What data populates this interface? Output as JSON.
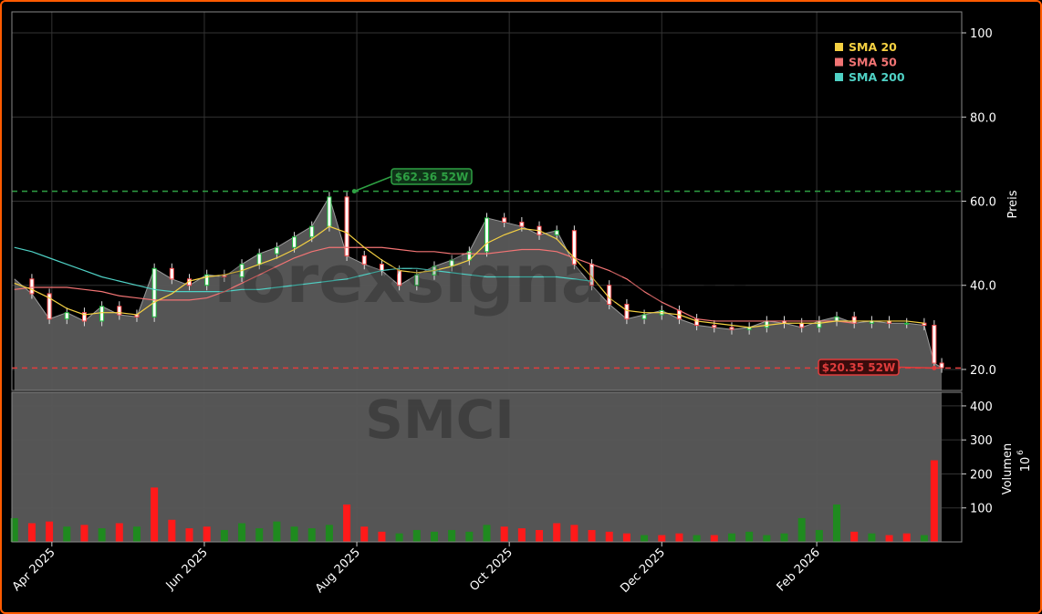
{
  "chart_data": [
    {
      "type": "candlestick",
      "ticker_watermark": "SMCI",
      "site_watermark": "forexsignale.tr",
      "ylabel": "Preis",
      "ylim": [
        15,
        105
      ],
      "y_ticks": [
        20.0,
        40.0,
        60.0,
        80.0,
        100
      ],
      "y_tick_labels": [
        "20.0",
        "40.0",
        "60.0",
        "80.0",
        "100"
      ],
      "x_tick_labels": [
        {
          "date": "2025-04-01",
          "label": "Apr 2025"
        },
        {
          "date": "2025-06-01",
          "label": "Jun 2025"
        },
        {
          "date": "2025-08-01",
          "label": "Aug 2025"
        },
        {
          "date": "2025-10-01",
          "label": "Oct 2025"
        },
        {
          "date": "2025-12-01",
          "label": "Dec 2025"
        },
        {
          "date": "2026-02-01",
          "label": "Feb 2026"
        }
      ],
      "x_range": [
        "2025-03-16",
        "2026-03-31"
      ],
      "grid": true,
      "legend_position": "top-right",
      "legend": [
        {
          "name": "SMA 20",
          "color": "#f5d142"
        },
        {
          "name": "SMA 50",
          "color": "#f27474"
        },
        {
          "name": "SMA 200",
          "color": "#4fd1c5"
        }
      ],
      "price_series": {
        "dates": [
          "2025-03-17",
          "2025-03-24",
          "2025-03-31",
          "2025-04-07",
          "2025-04-14",
          "2025-04-21",
          "2025-04-28",
          "2025-05-05",
          "2025-05-12",
          "2025-05-19",
          "2025-05-26",
          "2025-06-02",
          "2025-06-09",
          "2025-06-16",
          "2025-06-23",
          "2025-06-30",
          "2025-07-07",
          "2025-07-14",
          "2025-07-21",
          "2025-07-28",
          "2025-08-04",
          "2025-08-11",
          "2025-08-18",
          "2025-08-25",
          "2025-09-01",
          "2025-09-08",
          "2025-09-15",
          "2025-09-22",
          "2025-09-29",
          "2025-10-06",
          "2025-10-13",
          "2025-10-20",
          "2025-10-27",
          "2025-11-03",
          "2025-11-10",
          "2025-11-17",
          "2025-11-24",
          "2025-12-01",
          "2025-12-08",
          "2025-12-15",
          "2025-12-22",
          "2025-12-29",
          "2026-01-05",
          "2026-01-12",
          "2026-01-19",
          "2026-01-26",
          "2026-02-02",
          "2026-02-09",
          "2026-02-16",
          "2026-02-23",
          "2026-03-02",
          "2026-03-09",
          "2026-03-16",
          "2026-03-20",
          "2026-03-23"
        ],
        "close": [
          41.5,
          38.0,
          32.0,
          33.5,
          31.5,
          35.0,
          33.0,
          32.5,
          44.0,
          41.5,
          40.0,
          42.5,
          42.0,
          45.0,
          47.5,
          49.0,
          51.5,
          54.0,
          61.0,
          47.0,
          45.0,
          43.5,
          40.0,
          42.5,
          44.5,
          46.0,
          48.0,
          56.0,
          55.0,
          54.0,
          52.0,
          53.0,
          45.0,
          40.0,
          35.5,
          32.0,
          33.0,
          34.0,
          32.0,
          30.5,
          30.0,
          29.5,
          30.0,
          31.5,
          31.0,
          30.0,
          31.5,
          32.5,
          31.0,
          31.5,
          31.0,
          31.0,
          30.5,
          21.5,
          20.4
        ]
      },
      "sma20": [
        40.5,
        39.0,
        37.0,
        34.5,
        33.0,
        33.5,
        33.5,
        33.0,
        36.0,
        38.0,
        41.0,
        42.0,
        42.5,
        43.5,
        45.0,
        46.5,
        48.5,
        51.0,
        54.0,
        52.5,
        49.0,
        46.0,
        43.5,
        43.0,
        43.5,
        44.5,
        46.0,
        50.0,
        52.0,
        53.5,
        53.0,
        51.0,
        46.5,
        42.0,
        37.0,
        34.0,
        33.5,
        33.5,
        33.0,
        31.5,
        31.0,
        30.5,
        30.0,
        30.5,
        31.0,
        31.0,
        31.0,
        31.5,
        31.5,
        31.5,
        31.5,
        31.5,
        31.0
      ],
      "sma50": [
        39.0,
        39.5,
        39.5,
        39.5,
        39.0,
        38.5,
        37.5,
        37.0,
        36.5,
        36.5,
        36.5,
        37.0,
        38.5,
        40.5,
        42.5,
        44.5,
        46.5,
        48.0,
        49.0,
        49.0,
        49.0,
        49.0,
        48.5,
        48.0,
        48.0,
        47.5,
        47.5,
        47.5,
        48.0,
        48.5,
        48.5,
        48.0,
        46.5,
        45.0,
        43.5,
        41.5,
        38.5,
        36.0,
        34.0,
        32.0,
        31.5,
        31.5,
        31.5,
        31.5,
        31.5,
        31.5,
        31.5,
        31.5,
        31.0
      ],
      "sma200": [
        49.0,
        48.0,
        46.5,
        45.0,
        43.5,
        42.0,
        41.0,
        40.0,
        39.0,
        38.5,
        38.5,
        38.5,
        38.5,
        39.0,
        39.0,
        39.5,
        40.0,
        40.5,
        41.0,
        41.5,
        42.5,
        43.5,
        44.0,
        44.0,
        43.5,
        43.0,
        42.5,
        42.0,
        42.0,
        42.0,
        42.0,
        42.0,
        41.5,
        41.0
      ],
      "annotations": [
        {
          "label": "$62.36 52W",
          "value": 62.36,
          "date": "2025-07-31",
          "kind": "52-week high",
          "color": "#2ea043"
        },
        {
          "label": "$20.35 52W",
          "value": 20.35,
          "date": "2026-03-20",
          "kind": "52-week low",
          "color": "#e03c3c"
        }
      ]
    },
    {
      "type": "bar",
      "ylabel": "Volumen",
      "unit": "10^6",
      "unit_label": "10",
      "unit_exp": "6",
      "ylim": [
        0,
        440
      ],
      "y_ticks": [
        100,
        200,
        300,
        400
      ],
      "y_tick_labels": [
        "100",
        "200",
        "300",
        "400"
      ],
      "up_color": "#1f8a1f",
      "down_color": "#ff1a1a",
      "volume_series": {
        "dates": [
          "2025-03-17",
          "2025-03-24",
          "2025-03-31",
          "2025-04-07",
          "2025-04-14",
          "2025-04-21",
          "2025-04-28",
          "2025-05-05",
          "2025-05-12",
          "2025-05-19",
          "2025-05-26",
          "2025-06-02",
          "2025-06-09",
          "2025-06-16",
          "2025-06-23",
          "2025-06-30",
          "2025-07-07",
          "2025-07-14",
          "2025-07-21",
          "2025-07-28",
          "2025-08-04",
          "2025-08-11",
          "2025-08-18",
          "2025-08-25",
          "2025-09-01",
          "2025-09-08",
          "2025-09-15",
          "2025-09-22",
          "2025-09-29",
          "2025-10-06",
          "2025-10-13",
          "2025-10-20",
          "2025-10-27",
          "2025-11-03",
          "2025-11-10",
          "2025-11-17",
          "2025-11-24",
          "2025-12-01",
          "2025-12-08",
          "2025-12-15",
          "2025-12-22",
          "2025-12-29",
          "2026-01-05",
          "2026-01-12",
          "2026-01-19",
          "2026-01-26",
          "2026-02-02",
          "2026-02-09",
          "2026-02-16",
          "2026-02-23",
          "2026-03-02",
          "2026-03-09",
          "2026-03-16",
          "2026-03-20"
        ],
        "values": [
          70,
          55,
          60,
          45,
          50,
          40,
          55,
          45,
          160,
          65,
          40,
          45,
          35,
          55,
          40,
          60,
          45,
          40,
          50,
          110,
          45,
          30,
          25,
          35,
          30,
          35,
          30,
          50,
          45,
          40,
          35,
          55,
          50,
          35,
          30,
          25,
          20,
          20,
          25,
          20,
          20,
          25,
          30,
          20,
          25,
          70,
          35,
          110,
          30,
          25,
          20,
          25,
          20,
          240
        ],
        "direction": [
          "up",
          "down",
          "down",
          "up",
          "down",
          "up",
          "down",
          "up",
          "down",
          "down",
          "down",
          "down",
          "up",
          "up",
          "up",
          "up",
          "up",
          "up",
          "up",
          "down",
          "down",
          "down",
          "up",
          "up",
          "up",
          "up",
          "up",
          "up",
          "down",
          "down",
          "down",
          "down",
          "down",
          "down",
          "down",
          "down",
          "up",
          "down",
          "down",
          "up",
          "down",
          "up",
          "up",
          "up",
          "up",
          "up",
          "up",
          "up",
          "down",
          "up",
          "down",
          "down",
          "up",
          "down"
        ]
      }
    }
  ]
}
